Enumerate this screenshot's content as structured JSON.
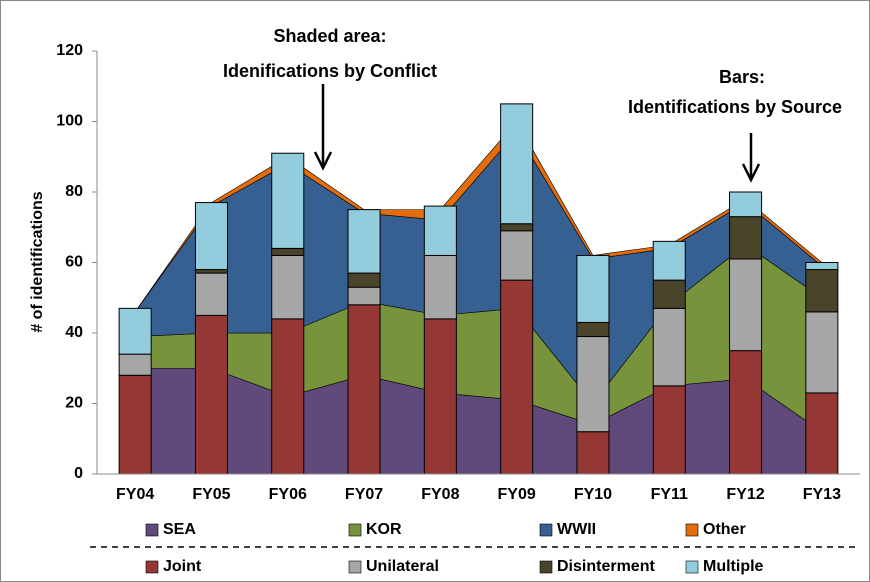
{
  "chart_data": {
    "type": "bar",
    "ylabel": "# of identifications",
    "annotations": [
      "Shaded area:",
      "Idenifications by Conflict",
      "Bars:",
      "Identifications by Source"
    ],
    "categories": [
      "FY04",
      "FY05",
      "FY06",
      "FY07",
      "FY08",
      "FY09",
      "FY10",
      "FY11",
      "FY12",
      "FY13"
    ],
    "ylim": [
      0,
      120
    ],
    "yticks": [
      0,
      20,
      40,
      60,
      80,
      100,
      120
    ],
    "area_series": [
      {
        "name": "SEA",
        "color": "#604a7b",
        "values": [
          30,
          30,
          22,
          28,
          23,
          21,
          14,
          25,
          27,
          12
        ]
      },
      {
        "name": "KOR",
        "color": "#77933c",
        "values": [
          9,
          10,
          18,
          21,
          22,
          26,
          6,
          23,
          38,
          38
        ]
      },
      {
        "name": "WWII",
        "color": "#376092",
        "values": [
          7,
          36,
          48,
          25,
          27,
          50,
          41,
          16,
          12,
          9
        ]
      },
      {
        "name": "Other",
        "color": "#e46c0a",
        "values": [
          0,
          1,
          2,
          1,
          3,
          3,
          1,
          1,
          1,
          1
        ]
      }
    ],
    "series": [
      {
        "name": "Joint",
        "color": "#953735",
        "values": [
          28,
          45,
          44,
          48,
          44,
          55,
          12,
          25,
          35,
          23
        ]
      },
      {
        "name": "Unilateral",
        "color": "#a6a6a6",
        "values": [
          6,
          12,
          18,
          5,
          18,
          14,
          27,
          22,
          26,
          23
        ]
      },
      {
        "name": "Disinterment",
        "color": "#4a452a",
        "values": [
          0,
          1,
          2,
          4,
          0,
          2,
          4,
          8,
          12,
          12
        ]
      },
      {
        "name": "Multiple",
        "color": "#93cddd",
        "values": [
          13,
          19,
          27,
          18,
          14,
          34,
          19,
          11,
          7,
          2
        ]
      }
    ]
  }
}
